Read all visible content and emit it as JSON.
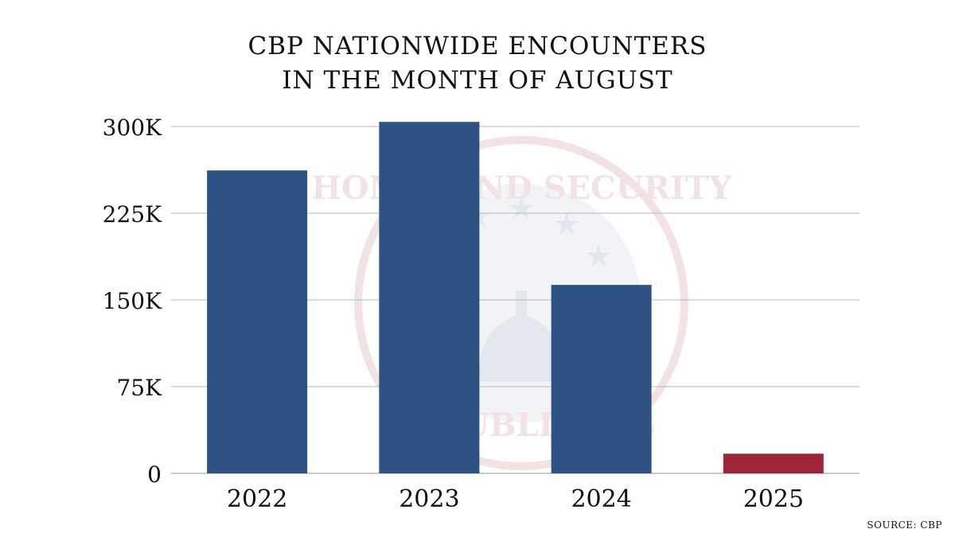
{
  "chart_data": {
    "type": "bar",
    "title": [
      "CBP NATIONWIDE ENCOUNTERS",
      "IN THE MONTH OF AUGUST"
    ],
    "categories": [
      "2022",
      "2023",
      "2024",
      "2025"
    ],
    "values": [
      262000,
      304000,
      163000,
      17000
    ],
    "colors": [
      "#2e5283",
      "#2e5283",
      "#2e5283",
      "#9e2638"
    ],
    "ylim": [
      0,
      300000
    ],
    "yticks": [
      0,
      75000,
      150000,
      225000,
      300000
    ],
    "ytick_labels": [
      "0",
      "75K",
      "150K",
      "225K",
      "300K"
    ],
    "xlabel": "",
    "ylabel": "",
    "grid": true,
    "source": "SOURCE: CBP",
    "watermark": "HOMELAND SECURITY REPUBLICANS"
  }
}
